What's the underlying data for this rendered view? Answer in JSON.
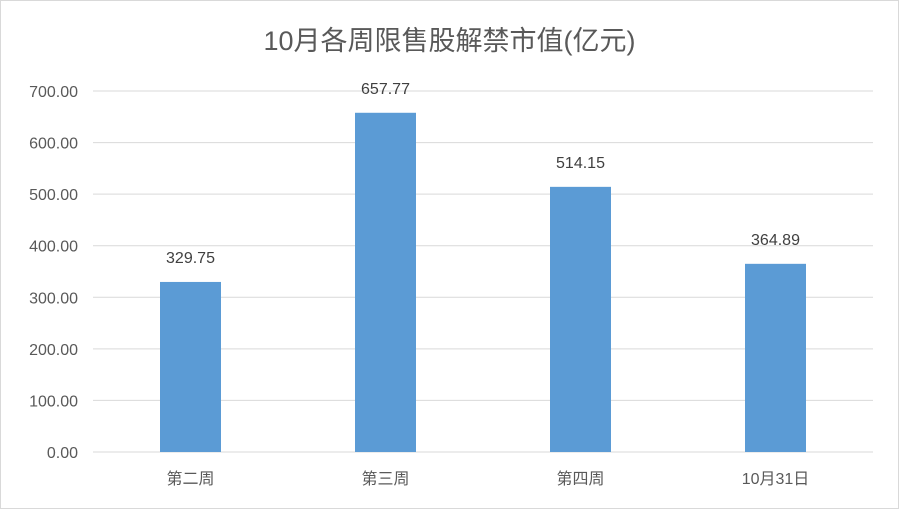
{
  "chart_data": {
    "type": "bar",
    "title": "10月各周限售股解禁市值(亿元)",
    "categories": [
      "第二周",
      "第三周",
      "第四周",
      "10月31日"
    ],
    "values": [
      329.75,
      657.77,
      514.15,
      364.89
    ],
    "data_labels": [
      "329.75",
      "657.77",
      "514.15",
      "364.89"
    ],
    "y_ticks": [
      "0.00",
      "100.00",
      "200.00",
      "300.00",
      "400.00",
      "500.00",
      "600.00",
      "700.00"
    ],
    "ylim": [
      0,
      700
    ],
    "grid": true,
    "legend": "none",
    "bar_color": "#5b9bd5",
    "grid_color": "#d9d9d9"
  }
}
